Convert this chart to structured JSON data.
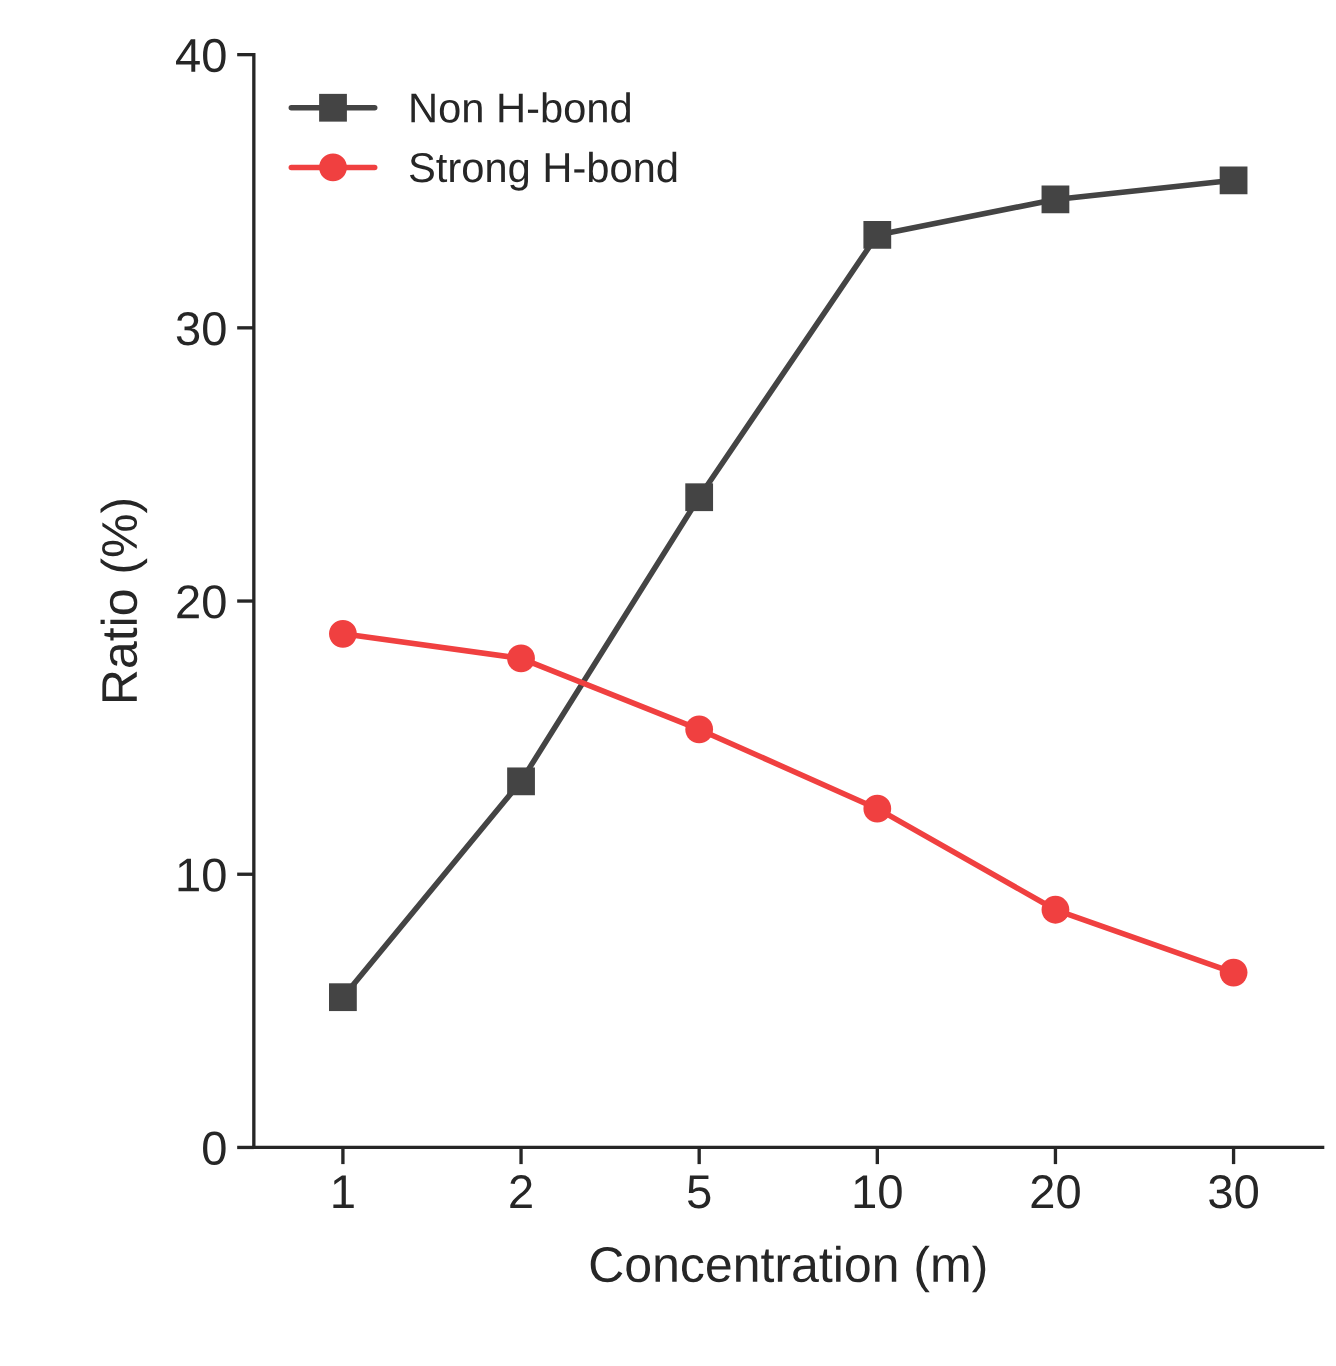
{
  "chart_data": {
    "type": "line",
    "xlabel": "Concentration (m)",
    "ylabel": "Ratio (%)",
    "categories": [
      "1",
      "2",
      "5",
      "10",
      "20",
      "30"
    ],
    "series": [
      {
        "name": "Non H-bond",
        "color": "#444444",
        "marker": "square",
        "values": [
          5.5,
          13.4,
          23.8,
          33.4,
          34.7,
          35.4
        ]
      },
      {
        "name": "Strong H-bond",
        "color": "#f04040",
        "marker": "circle",
        "values": [
          18.8,
          17.9,
          15.3,
          12.4,
          8.7,
          6.4
        ]
      }
    ],
    "ylim": [
      0,
      40
    ],
    "yticks": [
      0,
      10,
      20,
      30,
      40
    ],
    "legend": "top left",
    "grid": false,
    "line_style": "solid"
  }
}
